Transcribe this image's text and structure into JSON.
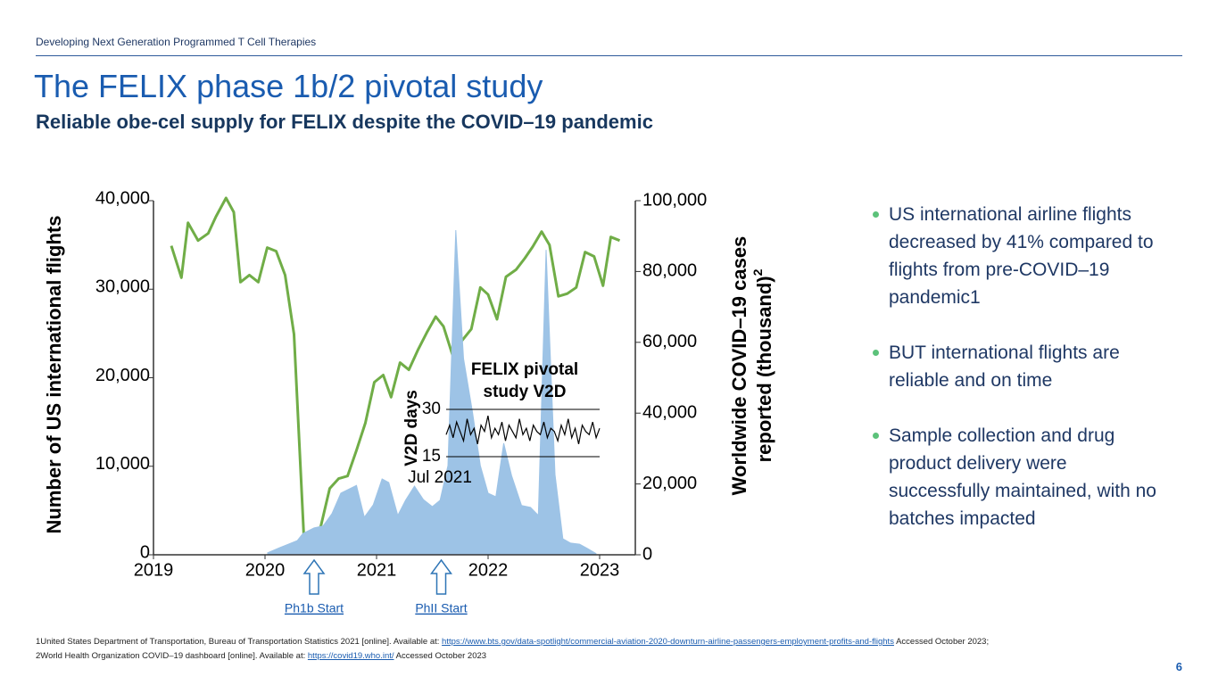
{
  "header": "Developing Next Generation Programmed T Cell Therapies",
  "title": "The FELIX phase 1b/2 pivotal study",
  "subtitle": "Reliable obe-cel supply for FELIX despite the COVID–19 pandemic",
  "chart_data": [
    {
      "type": "line",
      "ylabel": "Number of US international flights",
      "y2label": [
        "Worldwide COVID–19 cases",
        "reported (thousand)"
      ],
      "y2label_superscript": "2",
      "xlim": [
        2019,
        2023.32
      ],
      "xticks": [
        2019,
        2020,
        2021,
        2022,
        2023
      ],
      "ylim": [
        0,
        40000
      ],
      "yticks": [
        0,
        {
          "value": 10000,
          "label": "10,000"
        },
        {
          "value": 20000,
          "label": "20,000"
        },
        {
          "value": 30000,
          "label": "30,000"
        },
        {
          "value": 40000,
          "label": "40,000"
        }
      ],
      "y2lim": [
        0,
        100000
      ],
      "y2ticks": [
        0,
        {
          "value": 20000,
          "label": "20,000"
        },
        {
          "value": 40000,
          "label": "40,000"
        },
        {
          "value": 60000,
          "label": "60,000"
        },
        {
          "value": 80000,
          "label": "80,000"
        },
        {
          "value": 100000,
          "label": "100,000"
        }
      ],
      "series": [
        {
          "type": "line",
          "color": "#70ad47",
          "x": [
            2019.16,
            2019.25,
            2019.31,
            2019.4,
            2019.49,
            2019.56,
            2019.65,
            2019.72,
            2019.78,
            2019.86,
            2019.94,
            2020.02,
            2020.1,
            2020.18,
            2020.26,
            2020.35,
            2020.42,
            2020.5,
            2020.58,
            2020.66,
            2020.74,
            2020.82,
            2020.9,
            2020.98,
            2021.06,
            2021.13,
            2021.21,
            2021.29,
            2021.37,
            2021.45,
            2021.53,
            2021.6,
            2021.68,
            2021.76,
            2021.85,
            2021.93,
            2022.0,
            2022.08,
            2022.16,
            2022.25,
            2022.33,
            2022.4,
            2022.48,
            2022.55,
            2022.63,
            2022.71,
            2022.79,
            2022.87,
            2022.95,
            2023.03,
            2023.1,
            2023.18
          ],
          "values": [
            34900,
            31300,
            37500,
            35500,
            36300,
            38200,
            40300,
            38700,
            30800,
            31600,
            30800,
            34700,
            34300,
            31600,
            24900,
            1700,
            1700,
            3200,
            7500,
            8600,
            8900,
            11800,
            14900,
            19500,
            20300,
            17800,
            21700,
            20900,
            23100,
            25100,
            26900,
            25800,
            22600,
            24100,
            25500,
            30200,
            29400,
            26600,
            31400,
            32200,
            33500,
            34800,
            36500,
            35000,
            29200,
            29500,
            30200,
            34200,
            33700,
            30400,
            35900,
            35500
          ]
        },
        {
          "type": "area",
          "axis": "y2",
          "color": "#9dc3e6",
          "x": [
            2020.02,
            2020.13,
            2020.21,
            2020.29,
            2020.34,
            2020.44,
            2020.52,
            2020.6,
            2020.68,
            2020.82,
            2020.89,
            2020.97,
            2021.05,
            2021.11,
            2021.19,
            2021.26,
            2021.34,
            2021.42,
            2021.5,
            2021.57,
            2021.64,
            2021.71,
            2021.78,
            2021.86,
            2021.93,
            2022.0,
            2022.07,
            2022.14,
            2022.21,
            2022.3,
            2022.38,
            2022.45,
            2022.52,
            2022.6,
            2022.67,
            2022.74,
            2022.82,
            2022.89,
            2022.97
          ],
          "values": [
            500,
            2000,
            3000,
            4000,
            6000,
            7600,
            8100,
            11600,
            17400,
            19600,
            10600,
            14100,
            21400,
            20400,
            11100,
            15400,
            19400,
            15600,
            13600,
            15400,
            25200,
            91700,
            55400,
            40300,
            25200,
            17400,
            16400,
            31500,
            22400,
            13900,
            13400,
            11100,
            86100,
            22700,
            4500,
            3300,
            3000,
            1800,
            300
          ]
        }
      ],
      "annotations": [
        {
          "text": "Ph1b Start",
          "x": 2020.44
        },
        {
          "text": "PhII Start",
          "x": 2021.58
        }
      ]
    },
    {
      "type": "line",
      "title": [
        "FELIX pivotal",
        "study V2D"
      ],
      "ylabel": "V2D days",
      "xlabel": "Jul 2021",
      "color": "#000000",
      "ylim": [
        15,
        30
      ],
      "yticks": [
        15,
        30
      ],
      "values": [
        22,
        25,
        21,
        26,
        23,
        20,
        27,
        22,
        24,
        19,
        25,
        23,
        28,
        21,
        24,
        22,
        26,
        20,
        25,
        23,
        21,
        27,
        22,
        24,
        20,
        25,
        23,
        22,
        26,
        21,
        24,
        23,
        20,
        25,
        22,
        27,
        21,
        24,
        19,
        25,
        23,
        22,
        26,
        21,
        24
      ]
    }
  ],
  "bullets": [
    "US international airline flights decreased by 41% compared to flights from pre-COVID–19 pandemic1",
    "BUT international flights are reliable and on time",
    "Sample collection and drug product delivery were successfully maintained, with no batches impacted"
  ],
  "footnotes": [
    {
      "text": "1United States Department of Transportation, Bureau of Transportation Statistics 2021 [online]. Available at: ",
      "link": "https://www.bts.gov/data-spotlight/commercial-aviation-2020-downturn-airline-passengers-employment-profits-and-flights",
      "after": " Accessed October 2023;"
    },
    {
      "text": "2World Health Organization COVID–19 dashboard [online]. Available at: ",
      "link": "https://covid19.who.int/",
      "after": "  Accessed October 2023"
    }
  ],
  "page_number": "6"
}
